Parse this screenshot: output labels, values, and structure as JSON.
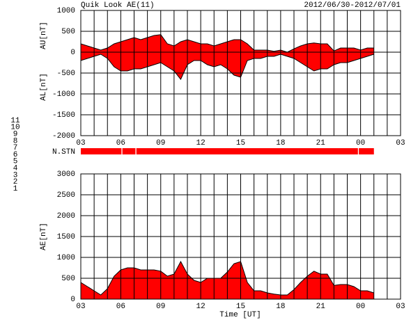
{
  "title": "Quik Look AE(11)",
  "date_range": "2012/06/30-2012/07/01",
  "xlabel": "Time [UT]",
  "stations": [
    {
      "label": "11",
      "color": "#00dddd"
    },
    {
      "label": "10",
      "color": "#ff00ff"
    },
    {
      "label": "9",
      "color": "#0000cc"
    },
    {
      "label": "8",
      "color": "#ffd700"
    },
    {
      "label": "7",
      "color": "#c8e060"
    },
    {
      "label": "6",
      "color": "#ff0000"
    },
    {
      "label": "5",
      "color": "#e8e8e8"
    },
    {
      "label": "4",
      "color": "#bbbbbb"
    },
    {
      "label": "3",
      "color": "#40a0a0"
    },
    {
      "label": "2",
      "color": "#9933cc"
    },
    {
      "label": "1",
      "color": "#0000ff"
    }
  ],
  "n_stn": {
    "label": "N.STN",
    "color": "#ff0000",
    "segments": [
      [
        3,
        6.05
      ],
      [
        6.12,
        7.1
      ],
      [
        7.17,
        23.8
      ],
      [
        23.87,
        25.0
      ]
    ]
  },
  "chart_data": [
    {
      "type": "area",
      "color": "#ff0000",
      "line_color": "#000000",
      "grid": true,
      "x": [
        3,
        3.5,
        4,
        4.5,
        5,
        5.5,
        6,
        6.5,
        7,
        7.5,
        8,
        8.5,
        9,
        9.5,
        10,
        10.5,
        11,
        11.5,
        12,
        12.5,
        13,
        13.5,
        14,
        14.5,
        15,
        15.5,
        16,
        16.5,
        17,
        17.5,
        18,
        18.5,
        19,
        19.5,
        20,
        20.5,
        21,
        21.5,
        22,
        22.5,
        23,
        23.5,
        24,
        24.5,
        25
      ],
      "series": [
        {
          "name": "AU[nT]",
          "values": [
            200,
            150,
            100,
            50,
            100,
            200,
            250,
            300,
            350,
            300,
            350,
            400,
            420,
            200,
            150,
            250,
            300,
            250,
            200,
            200,
            150,
            200,
            250,
            300,
            300,
            200,
            50,
            50,
            50,
            20,
            50,
            0,
            80,
            150,
            200,
            220,
            200,
            200,
            30,
            100,
            100,
            100,
            50,
            100,
            100
          ]
        },
        {
          "name": "AL[nT]",
          "values": [
            -200,
            -150,
            -100,
            -50,
            -150,
            -350,
            -450,
            -450,
            -400,
            -400,
            -350,
            -300,
            -250,
            -350,
            -450,
            -650,
            -300,
            -200,
            -200,
            -300,
            -350,
            -300,
            -400,
            -550,
            -600,
            -200,
            -150,
            -150,
            -100,
            -100,
            -50,
            -100,
            -150,
            -250,
            -350,
            -450,
            -400,
            -400,
            -300,
            -250,
            -250,
            -200,
            -150,
            -100,
            -50
          ]
        }
      ],
      "xlim": [
        3,
        27
      ],
      "xticks": [
        {
          "value": 3,
          "label": "03"
        },
        {
          "value": 6,
          "label": "06"
        },
        {
          "value": 9,
          "label": "09"
        },
        12,
        15,
        18,
        21,
        {
          "value": 24,
          "label": "00"
        },
        {
          "value": 27,
          "label": "03"
        }
      ],
      "xgrid": [
        3,
        4,
        5,
        6,
        7,
        8,
        9,
        10,
        11,
        12,
        13,
        14,
        15,
        16,
        17,
        18,
        19,
        20,
        21,
        22,
        23,
        24,
        25,
        26,
        27
      ],
      "ylim": [
        -2000,
        1000
      ],
      "yticks": [
        1000,
        500,
        0,
        -500,
        -1000,
        -1500,
        -2000
      ]
    },
    {
      "type": "area",
      "color": "#ff0000",
      "line_color": "#000000",
      "grid": true,
      "x": [
        3,
        3.5,
        4,
        4.5,
        5,
        5.5,
        6,
        6.5,
        7,
        7.5,
        8,
        8.5,
        9,
        9.5,
        10,
        10.5,
        11,
        11.5,
        12,
        12.5,
        13,
        13.5,
        14,
        14.5,
        15,
        15.5,
        16,
        16.5,
        17,
        17.5,
        18,
        18.5,
        19,
        19.5,
        20,
        20.5,
        21,
        21.5,
        22,
        22.5,
        23,
        23.5,
        24,
        24.5,
        25
      ],
      "series": [
        {
          "name": "AE[nT]",
          "values": [
            400,
            300,
            200,
            100,
            250,
            550,
            700,
            750,
            750,
            700,
            700,
            700,
            670,
            550,
            600,
            900,
            600,
            450,
            400,
            500,
            500,
            500,
            650,
            850,
            900,
            400,
            200,
            200,
            150,
            120,
            100,
            100,
            230,
            400,
            550,
            670,
            600,
            600,
            330,
            350,
            350,
            300,
            200,
            200,
            150
          ]
        }
      ],
      "xlim": [
        3,
        27
      ],
      "xticks": [
        {
          "value": 3,
          "label": "03"
        },
        {
          "value": 6,
          "label": "06"
        },
        {
          "value": 9,
          "label": "09"
        },
        12,
        15,
        18,
        21,
        {
          "value": 24,
          "label": "00"
        },
        {
          "value": 27,
          "label": "03"
        }
      ],
      "xgrid": [
        3,
        4,
        5,
        6,
        7,
        8,
        9,
        10,
        11,
        12,
        13,
        14,
        15,
        16,
        17,
        18,
        19,
        20,
        21,
        22,
        23,
        24,
        25,
        26,
        27
      ],
      "ylim": [
        0,
        3000
      ],
      "yticks": [
        3000,
        2500,
        2000,
        1500,
        1000,
        500,
        0
      ]
    }
  ]
}
